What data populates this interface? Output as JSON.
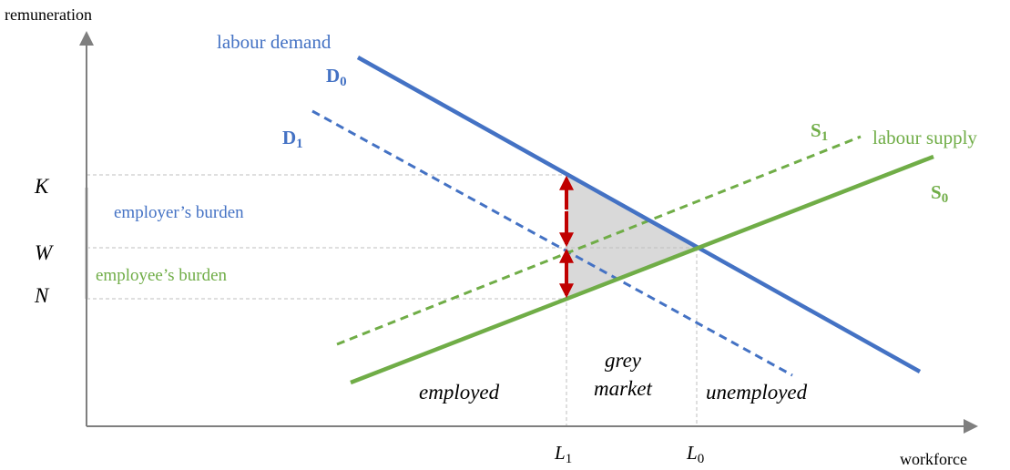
{
  "axes": {
    "y_label": "remuneration",
    "x_label": "workforce"
  },
  "curves": {
    "demand_title": "labour demand",
    "supply_title": "labour supply",
    "D0": {
      "letter": "D",
      "sub": "0"
    },
    "D1": {
      "letter": "D",
      "sub": "1"
    },
    "S0": {
      "letter": "S",
      "sub": "0"
    },
    "S1": {
      "letter": "S",
      "sub": "1"
    }
  },
  "levels": {
    "K": "K",
    "W": "W",
    "N": "N"
  },
  "burdens": {
    "employer": "employer’s burden",
    "employee": "employee’s burden"
  },
  "regions": {
    "employed": "employed",
    "grey_1": "grey",
    "grey_2": "market",
    "unemployed": "unemployed"
  },
  "quantities": {
    "L1": {
      "letter": "L",
      "sub": "1"
    },
    "L0": {
      "letter": "L",
      "sub": "0"
    }
  }
}
